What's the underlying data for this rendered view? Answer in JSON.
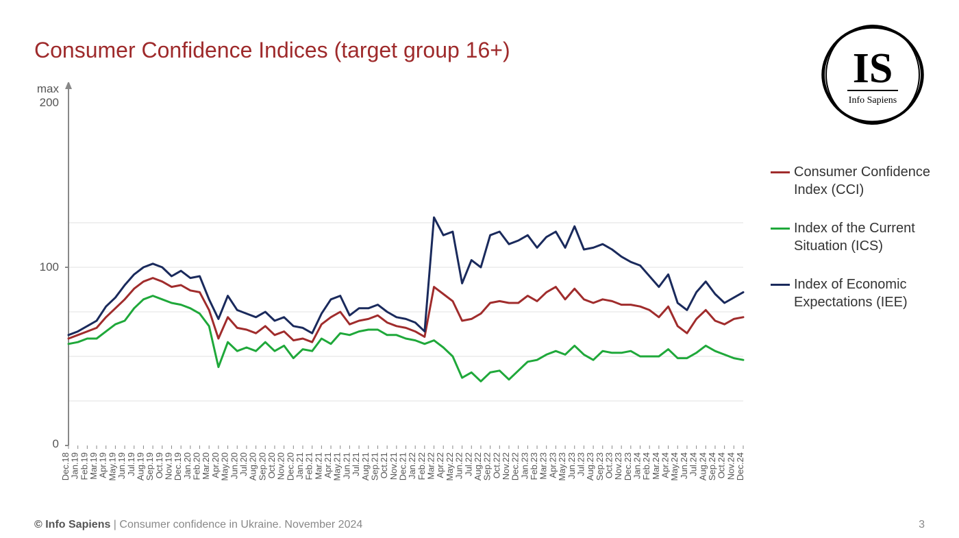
{
  "title": {
    "text": "Consumer Confidence Indices (target group 16+)",
    "color": "#9e2a2b"
  },
  "logo": {
    "initials": "IS",
    "subtitle": "Info Sapiens"
  },
  "footer": {
    "source_bold": "© Info Sapiens",
    "source_rest": " | Consumer confidence in Ukraine. November 2024",
    "page": "3"
  },
  "chart": {
    "type": "line",
    "ylim": [
      0,
      200
    ],
    "ymax_label": "max\n200",
    "y_ticks": [
      0,
      100
    ],
    "gridline_values": [
      25,
      50,
      75,
      100,
      125
    ],
    "grid_color": "#e0e0e0",
    "axis_color": "#888888",
    "tick_fontsize": 13,
    "line_width": 3,
    "x_labels": [
      "Dec.18",
      "Jan.19",
      "Feb.19",
      "Mar.19",
      "Apr.19",
      "May.19",
      "Jun.19",
      "Jul.19",
      "Aug.19",
      "Sep.19",
      "Oct.19",
      "Nov.19",
      "Dec.19",
      "Jan.20",
      "Feb.20",
      "Mar.20",
      "Apr.20",
      "May.20",
      "Jun.20",
      "Jul.20",
      "Aug.20",
      "Sep.20",
      "Oct.20",
      "Nov.20",
      "Dec.20",
      "Jan.21",
      "Feb.21",
      "Mar.21",
      "Apr.21",
      "May.21",
      "Jun.21",
      "Jul.21",
      "Aug.21",
      "Sep.21",
      "Oct.21",
      "Nov.21",
      "Dec.21",
      "Jan.22",
      "Feb.22",
      "Mar.22",
      "Apr.22",
      "May.22",
      "Jun.22",
      "Jul.22",
      "Aug.22",
      "Sep.22",
      "Oct.22",
      "Nov.22",
      "Dec.22",
      "Jan.23",
      "Feb.23",
      "Mar.23",
      "Apr.23",
      "May.23",
      "Jun.23",
      "Jul.23",
      "Aug.23",
      "Sep.23",
      "Oct.23",
      "Nov.23",
      "Dec.23",
      "Jan.24",
      "Feb.24",
      "Mar.24",
      "Apr.24",
      "May.24",
      "Jun.24",
      "Jul.24",
      "Aug.24",
      "Sep.24",
      "Oct.24",
      "Nov.24",
      "Dec.24"
    ],
    "series": [
      {
        "name": "Consumer Confidence Index (CCI)",
        "color": "#a02c2c",
        "data": [
          60,
          62,
          64,
          66,
          72,
          77,
          82,
          88,
          92,
          94,
          92,
          89,
          90,
          87,
          86,
          76,
          60,
          72,
          66,
          65,
          63,
          67,
          62,
          64,
          59,
          60,
          58,
          68,
          72,
          75,
          68,
          70,
          71,
          73,
          69,
          67,
          66,
          64,
          61,
          89,
          85,
          81,
          70,
          71,
          74,
          80,
          81,
          80,
          80,
          84,
          81,
          86,
          89,
          82,
          88,
          82,
          80,
          82,
          81,
          79,
          79,
          78,
          76,
          72,
          78,
          67,
          63,
          71,
          76,
          70,
          68,
          71,
          72
        ]
      },
      {
        "name": "Index of the Current Situation (ICS)",
        "color": "#1fa83a",
        "data": [
          57,
          58,
          60,
          60,
          64,
          68,
          70,
          77,
          82,
          84,
          82,
          80,
          79,
          77,
          74,
          67,
          44,
          58,
          53,
          55,
          53,
          58,
          53,
          56,
          49,
          54,
          53,
          60,
          57,
          63,
          62,
          64,
          65,
          65,
          62,
          62,
          60,
          59,
          57,
          59,
          55,
          50,
          38,
          41,
          36,
          41,
          42,
          37,
          42,
          47,
          48,
          51,
          53,
          51,
          56,
          51,
          48,
          53,
          52,
          52,
          53,
          50,
          50,
          50,
          54,
          49,
          49,
          52,
          56,
          53,
          51,
          49,
          48
        ]
      },
      {
        "name": "Index of Economic Expectations (IEE)",
        "color": "#1a2a5c",
        "data": [
          62,
          64,
          67,
          70,
          78,
          83,
          90,
          96,
          100,
          102,
          100,
          95,
          98,
          94,
          95,
          82,
          71,
          84,
          76,
          74,
          72,
          75,
          70,
          72,
          67,
          66,
          63,
          74,
          82,
          84,
          73,
          77,
          77,
          79,
          75,
          72,
          71,
          69,
          64,
          128,
          118,
          120,
          91,
          104,
          100,
          118,
          120,
          113,
          115,
          118,
          111,
          117,
          120,
          111,
          123,
          110,
          111,
          113,
          110,
          106,
          103,
          101,
          95,
          89,
          96,
          80,
          76,
          86,
          92,
          85,
          80,
          83,
          86
        ]
      }
    ]
  },
  "legend_items": [
    {
      "color": "#a02c2c",
      "label": "Consumer Confidence Index (CCI)"
    },
    {
      "color": "#1fa83a",
      "label": "Index of the Current Situation (ICS)"
    },
    {
      "color": "#1a2a5c",
      "label": "Index of Economic Expectations (IEE)"
    }
  ]
}
